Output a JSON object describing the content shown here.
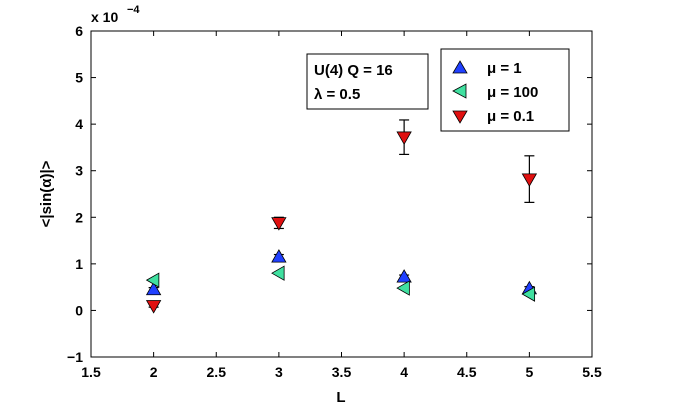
{
  "chart_data": {
    "type": "scatter",
    "xlabel": "L",
    "ylabel": "<|sin(α)|>",
    "y_multiplier": "x 10",
    "y_multiplier_exp": "−4",
    "xlim": [
      1.5,
      5.5
    ],
    "ylim": [
      -1,
      6
    ],
    "xticks": [
      1.5,
      2,
      2.5,
      3,
      3.5,
      4,
      4.5,
      5,
      5.5
    ],
    "xtick_labels": [
      "1.5",
      "2",
      "2.5",
      "3",
      "3.5",
      "4",
      "4.5",
      "5",
      "5.5"
    ],
    "yticks": [
      -1,
      0,
      1,
      2,
      3,
      4,
      5,
      6
    ],
    "ytick_labels": [
      "−1",
      "0",
      "1",
      "2",
      "3",
      "4",
      "5",
      "6"
    ],
    "grid": false,
    "annotation": [
      "U(4) Q = 16",
      "λ = 0.5"
    ],
    "legend_position": "top-right",
    "series": [
      {
        "name": "μ = 1",
        "marker": "triangle-up",
        "color": "#2040ff",
        "x": [
          2,
          3,
          4,
          5
        ],
        "y": [
          0.45,
          1.15,
          0.72,
          0.47
        ],
        "err": [
          0.04,
          0.05,
          0.04,
          0.04
        ]
      },
      {
        "name": "μ = 100",
        "marker": "triangle-left",
        "color": "#40e0a0",
        "x": [
          2,
          3,
          4,
          5
        ],
        "y": [
          0.65,
          0.8,
          0.48,
          0.35
        ],
        "err": [
          0.02,
          0.02,
          0.02,
          0.02
        ]
      },
      {
        "name": "μ = 0.1",
        "marker": "triangle-down",
        "color": "#e01010",
        "x": [
          2,
          3,
          4,
          5
        ],
        "y": [
          0.1,
          1.88,
          3.72,
          2.82
        ],
        "err": [
          0.03,
          0.12,
          0.37,
          0.5
        ]
      }
    ]
  }
}
